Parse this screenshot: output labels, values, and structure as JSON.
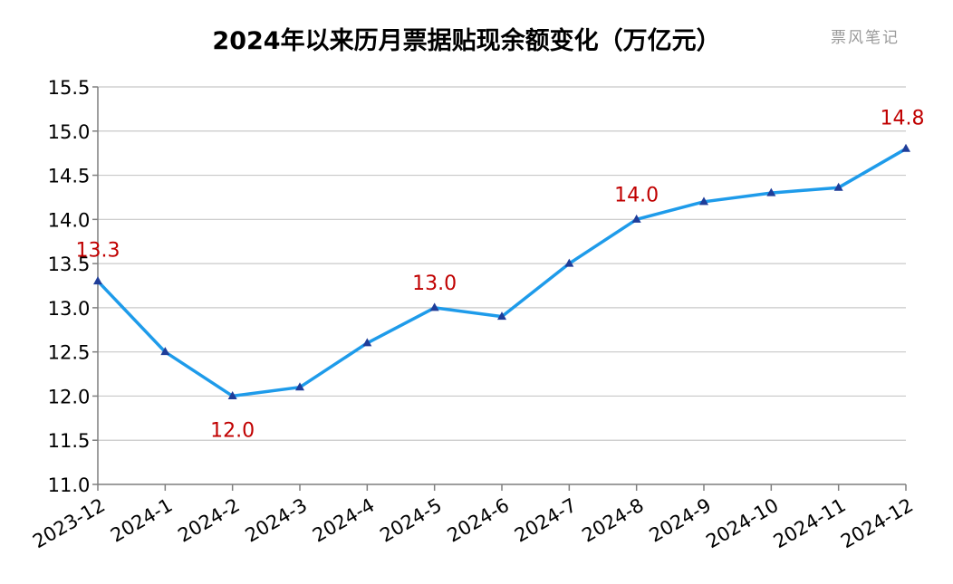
{
  "chart_data": {
    "type": "line",
    "title": "2024年以来历月票据贴现余额变化（万亿元）",
    "watermark": "票风笔记",
    "categories": [
      "2023-12",
      "2024-1",
      "2024-2",
      "2024-3",
      "2024-4",
      "2024-5",
      "2024-6",
      "2024-7",
      "2024-8",
      "2024-9",
      "2024-10",
      "2024-11",
      "2024-12"
    ],
    "series": [
      {
        "values": [
          13.3,
          12.5,
          12.0,
          12.1,
          12.6,
          13.0,
          12.9,
          13.5,
          14.0,
          14.2,
          14.3,
          14.36,
          14.8
        ]
      }
    ],
    "data_labels": [
      {
        "index": 0,
        "text": "13.3"
      },
      {
        "index": 2,
        "text": "12.0"
      },
      {
        "index": 5,
        "text": "13.0"
      },
      {
        "index": 8,
        "text": "14.0"
      },
      {
        "index": 12,
        "text": "14.8"
      }
    ],
    "ylim": [
      11.0,
      15.5
    ],
    "yticks": [
      "11.0",
      "11.5",
      "12.0",
      "12.5",
      "13.0",
      "13.5",
      "14.0",
      "14.5",
      "15.0",
      "15.5"
    ],
    "xlabel": "",
    "ylabel": "",
    "grid": true,
    "legend": "none",
    "colors": {
      "line": "#1e9bea",
      "marker": "#1f3d99",
      "label": "#c00000"
    }
  }
}
